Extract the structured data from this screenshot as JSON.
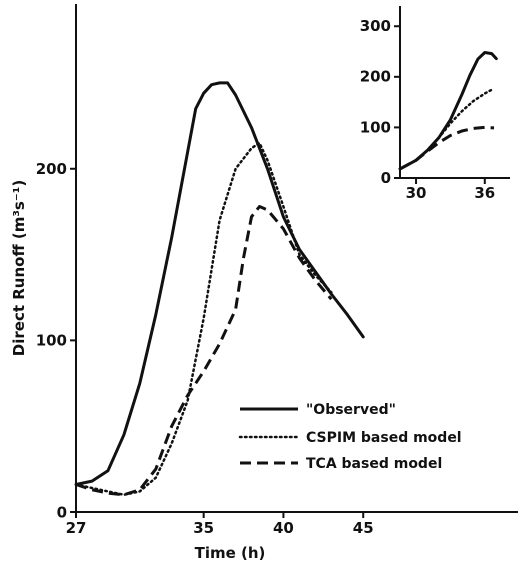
{
  "chart_data": [
    {
      "type": "line",
      "xlabel": "Time (h)",
      "ylabel": "Direct Runoff (m³s⁻¹)",
      "xlim": [
        27,
        54.7
      ],
      "ylim": [
        0,
        296
      ],
      "x_ticks": [
        27,
        35,
        40,
        45
      ],
      "y_ticks": [
        0,
        100,
        200
      ],
      "legend_position": "bottom-right",
      "series": [
        {
          "name": "\"Observed\"",
          "style": "solid",
          "x": [
            27,
            28,
            29,
            30,
            31,
            32,
            33,
            34,
            34.5,
            35,
            35.5,
            36,
            36.5,
            37,
            38,
            39,
            40,
            41,
            42,
            43,
            44,
            45
          ],
          "y": [
            16,
            18,
            24,
            45,
            75,
            115,
            160,
            210,
            235,
            244,
            249,
            250,
            250,
            243,
            224,
            200,
            172,
            153,
            140,
            127,
            115,
            102
          ]
        },
        {
          "name": "CSPIM based model",
          "style": "dotted",
          "x": [
            27,
            28,
            29,
            30,
            31,
            32,
            33,
            34,
            35,
            36,
            37,
            38,
            38.5,
            39,
            40,
            41,
            42,
            43
          ],
          "y": [
            16,
            14,
            12,
            10,
            12,
            20,
            40,
            65,
            113,
            170,
            200,
            212,
            215,
            205,
            178,
            150,
            138,
            128
          ]
        },
        {
          "name": "TCA based model",
          "style": "dashed",
          "x": [
            27,
            28,
            29,
            30,
            31,
            32,
            33,
            34,
            34.5,
            35,
            36,
            37,
            37.5,
            38,
            38.5,
            39,
            40,
            41,
            42,
            43
          ],
          "y": [
            16,
            13,
            11,
            10,
            13,
            25,
            50,
            68,
            75,
            82,
            98,
            118,
            148,
            172,
            178,
            176,
            165,
            148,
            135,
            124
          ]
        }
      ]
    },
    {
      "type": "line",
      "inset": true,
      "xlim": [
        28.6,
        38.2
      ],
      "ylim": [
        0,
        340
      ],
      "x_ticks": [
        30,
        36
      ],
      "y_ticks": [
        0,
        100,
        200,
        300
      ],
      "series": [
        {
          "style": "solid",
          "x": [
            28.6,
            30,
            31,
            32,
            33,
            34,
            34.7,
            35.4,
            36,
            36.6,
            37
          ],
          "y": [
            18,
            35,
            55,
            80,
            115,
            165,
            203,
            235,
            248,
            246,
            236
          ]
        },
        {
          "style": "dotted",
          "x": [
            28.6,
            30,
            31,
            32,
            33,
            34,
            35,
            36,
            36.8
          ],
          "y": [
            18,
            35,
            55,
            80,
            108,
            132,
            152,
            167,
            177
          ]
        },
        {
          "style": "dashed",
          "x": [
            28.6,
            30,
            31,
            32,
            33,
            34,
            35,
            36,
            36.8
          ],
          "y": [
            18,
            35,
            53,
            70,
            84,
            93,
            98,
            100,
            99
          ]
        }
      ]
    }
  ]
}
